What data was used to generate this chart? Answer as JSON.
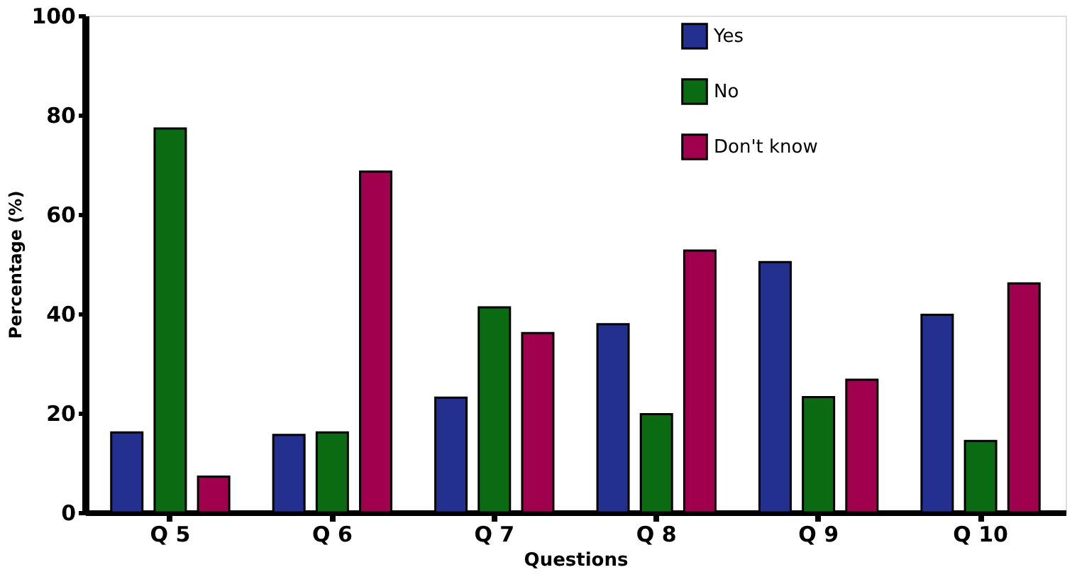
{
  "chart_data": {
    "type": "bar",
    "xlabel": "Questions",
    "ylabel": "Percentage (%)",
    "categories": [
      "Q 5",
      "Q 6",
      "Q 7",
      "Q 8",
      "Q 9",
      "Q 10"
    ],
    "series": [
      {
        "name": "Yes",
        "color": "#24308f",
        "values": [
          16.1,
          15.6,
          23.1,
          37.9,
          50.4,
          39.8
        ]
      },
      {
        "name": "No",
        "color": "#0b6b12",
        "values": [
          77.3,
          16.1,
          41.3,
          19.8,
          23.2,
          14.4
        ]
      },
      {
        "name": "Don't know",
        "color": "#a0004e",
        "values": [
          7.2,
          68.6,
          36.1,
          52.7,
          26.7,
          46.1
        ]
      }
    ],
    "ylim": [
      0,
      100
    ],
    "yticks": [
      0,
      20,
      40,
      60,
      80,
      100
    ],
    "grid": false,
    "legend": "top right"
  }
}
